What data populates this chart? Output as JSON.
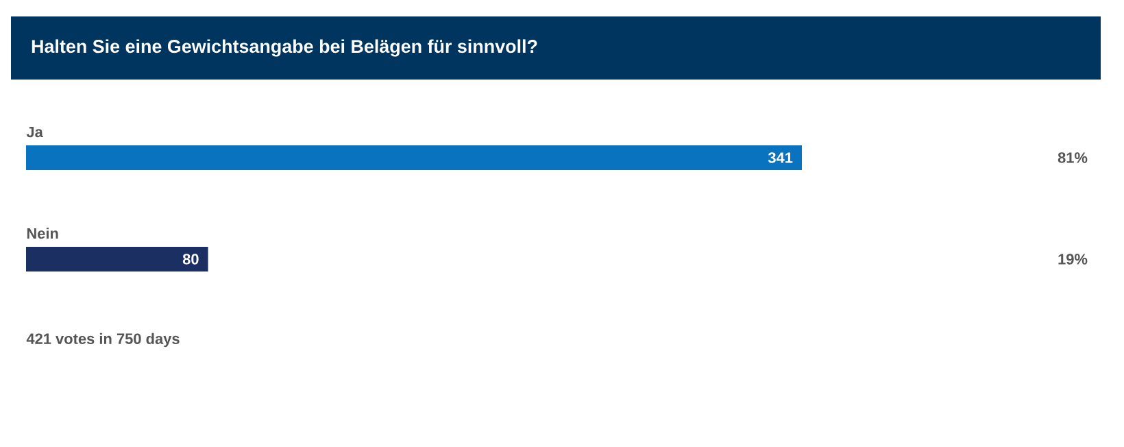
{
  "chart_data": {
    "type": "bar",
    "orientation": "horizontal",
    "title": "Halten Sie eine Gewichtsangabe bei Belägen für sinnvoll?",
    "categories": [
      "Ja",
      "Nein"
    ],
    "values": [
      341,
      80
    ],
    "colors": [
      "#0a73bf",
      "#1c2f63"
    ],
    "data_labels": true,
    "annotations": [
      "81%",
      "19%",
      "421 votes in 750 days"
    ]
  }
}
